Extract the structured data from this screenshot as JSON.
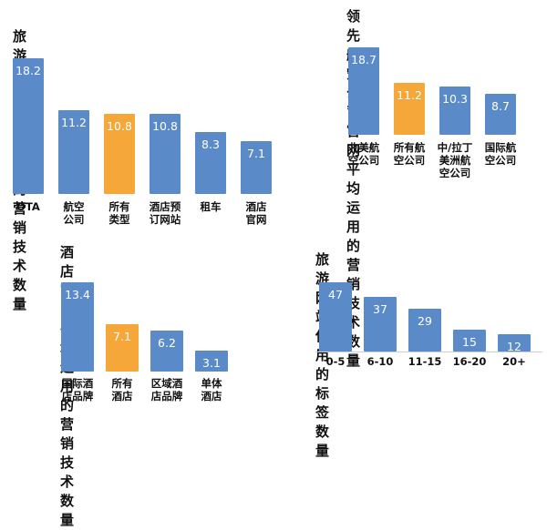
{
  "colors": {
    "blue": "#5B8AC8",
    "orange": "#F5A73A"
  },
  "chart_data": [
    {
      "type": "bar",
      "title": "旅游网站平均运用的营销技术数量",
      "categories": [
        "OTA",
        "航空\n公司",
        "所有\n类型",
        "酒店预\n订网站",
        "租车",
        "酒店\n官网"
      ],
      "values": [
        18.2,
        11.2,
        10.8,
        10.8,
        8.3,
        7.1
      ],
      "value_labels": [
        "18.2",
        "11.2",
        "10.8",
        "10.8",
        "8.3",
        "7.1"
      ],
      "highlight_index": 2,
      "ylim": [
        0,
        18.2
      ]
    },
    {
      "type": "bar",
      "title": "领先航空公司官网平均运用的\n营销技术数量",
      "categories": [
        "北美航\n空公司",
        "所有航\n空公司",
        "中/拉丁\n美洲航\n空公司",
        "国际航\n空公司"
      ],
      "values": [
        18.7,
        11.2,
        10.3,
        8.7
      ],
      "value_labels": [
        "18.7",
        "11.2",
        "10.3",
        "8.7"
      ],
      "highlight_index": 1,
      "ylim": [
        0,
        18.7
      ]
    },
    {
      "type": "bar",
      "title": "酒店官网平均运用的\n营销技术数量",
      "categories": [
        "国际酒\n店品牌",
        "所有\n酒店",
        "区域酒\n店品牌",
        "单体\n酒店"
      ],
      "values": [
        13.4,
        7.1,
        6.2,
        3.1
      ],
      "value_labels": [
        "13.4",
        "7.1",
        "6.2",
        "3.1"
      ],
      "highlight_index": 1,
      "ylim": [
        0,
        13.4
      ]
    },
    {
      "type": "bar",
      "title": "旅游网站使用的标签数量",
      "categories": [
        "0-5",
        "6-10",
        "11-15",
        "16-20",
        "20+"
      ],
      "values": [
        47,
        37,
        29,
        15,
        12
      ],
      "value_labels": [
        "47",
        "37",
        "29",
        "15",
        "12"
      ],
      "highlight_index": -1,
      "ylim": [
        0,
        47
      ]
    }
  ]
}
